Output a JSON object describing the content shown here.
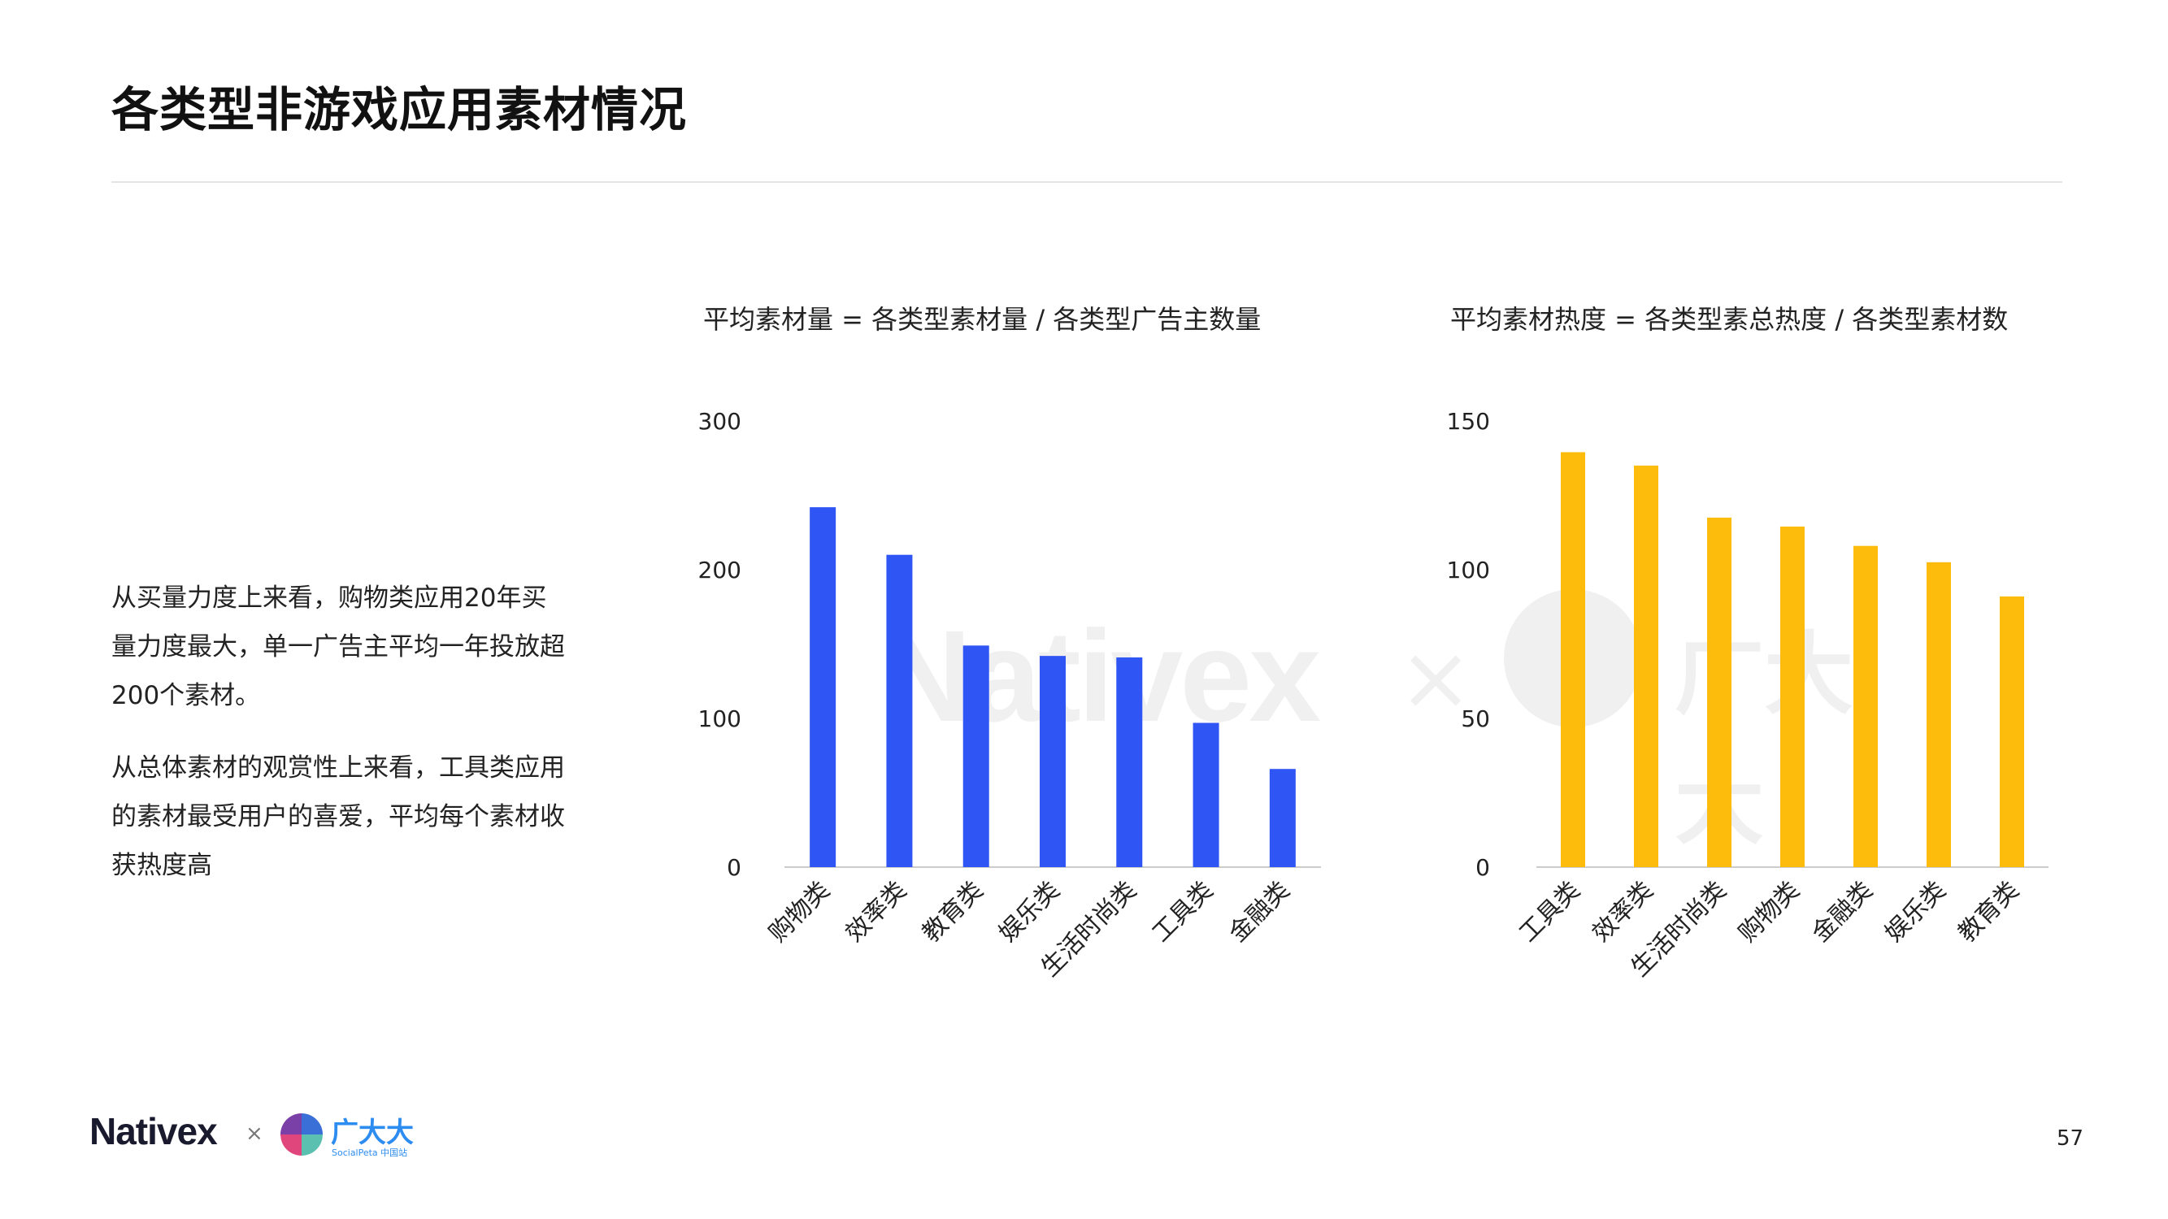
{
  "page": {
    "title": "各类型非游戏应用素材情况",
    "page_number": "57",
    "paragraphs": [
      "从买量力度上来看，购物类应用20年买量力度最大，单一广告主平均一年投放超200个素材。",
      "从总体素材的观赏性上来看，工具类应用的素材最受用户的喜爱，平均每个素材收获热度高"
    ]
  },
  "footer": {
    "brand_left": "Nativex",
    "separator": "×",
    "brand_right": "广大大",
    "brand_right_sub": "SocialPeta 中国站"
  },
  "watermark": {
    "word": "Nativex",
    "separator": "×",
    "cn": "广大大"
  },
  "colors": {
    "left_bars": "#2f55f5",
    "right_bars": "#fdbc0b",
    "axis": "#cccccc",
    "text": "#222222"
  },
  "chart_data": [
    {
      "type": "bar",
      "title": "平均素材量 = 各类型素材量 / 各类型广告主数量",
      "categories": [
        "购物类",
        "效率类",
        "教育类",
        "娱乐类",
        "生活时尚类",
        "工具类",
        "金融类"
      ],
      "values": [
        242,
        210,
        149,
        142,
        141,
        97,
        66
      ],
      "ylim": [
        0,
        300
      ],
      "yticks": [
        0,
        100,
        200,
        300
      ],
      "xlabel": "",
      "ylabel": "",
      "grid": false,
      "color": "#2f55f5"
    },
    {
      "type": "bar",
      "title": "平均素材热度 = 各类型素总热度 / 各类型素材数",
      "categories": [
        "工具类",
        "效率类",
        "生活时尚类",
        "购物类",
        "金融类",
        "娱乐类",
        "教育类"
      ],
      "values": [
        139.5,
        135,
        117.5,
        114.5,
        108,
        102.5,
        91
      ],
      "ylim": [
        0,
        150
      ],
      "yticks": [
        0,
        50,
        100,
        150
      ],
      "xlabel": "",
      "ylabel": "",
      "grid": false,
      "color": "#fdbc0b"
    }
  ]
}
